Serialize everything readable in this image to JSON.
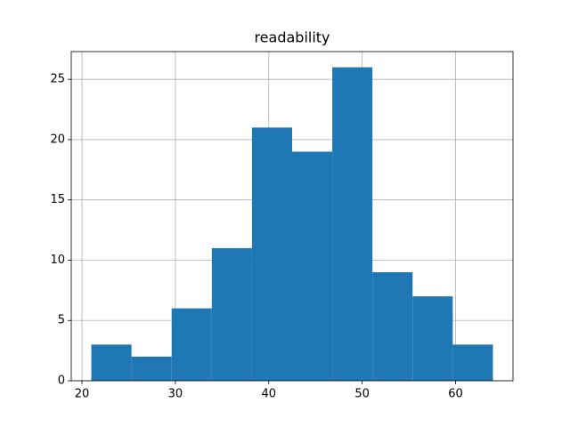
{
  "chart_data": {
    "type": "histogram",
    "title": "readability",
    "bins": [
      21,
      25.3,
      29.6,
      33.9,
      38.2,
      42.5,
      46.8,
      51.1,
      55.4,
      59.7,
      64
    ],
    "counts": [
      3,
      2,
      6,
      11,
      21,
      19,
      26,
      9,
      7,
      3
    ],
    "color": "#1f77b4",
    "xlim": [
      18.85,
      66.15
    ],
    "xticks": [
      20,
      30,
      40,
      50,
      60
    ],
    "ylim": [
      0,
      27.3
    ],
    "yticks": [
      0,
      5,
      10,
      15,
      20,
      25
    ],
    "grid": true
  }
}
